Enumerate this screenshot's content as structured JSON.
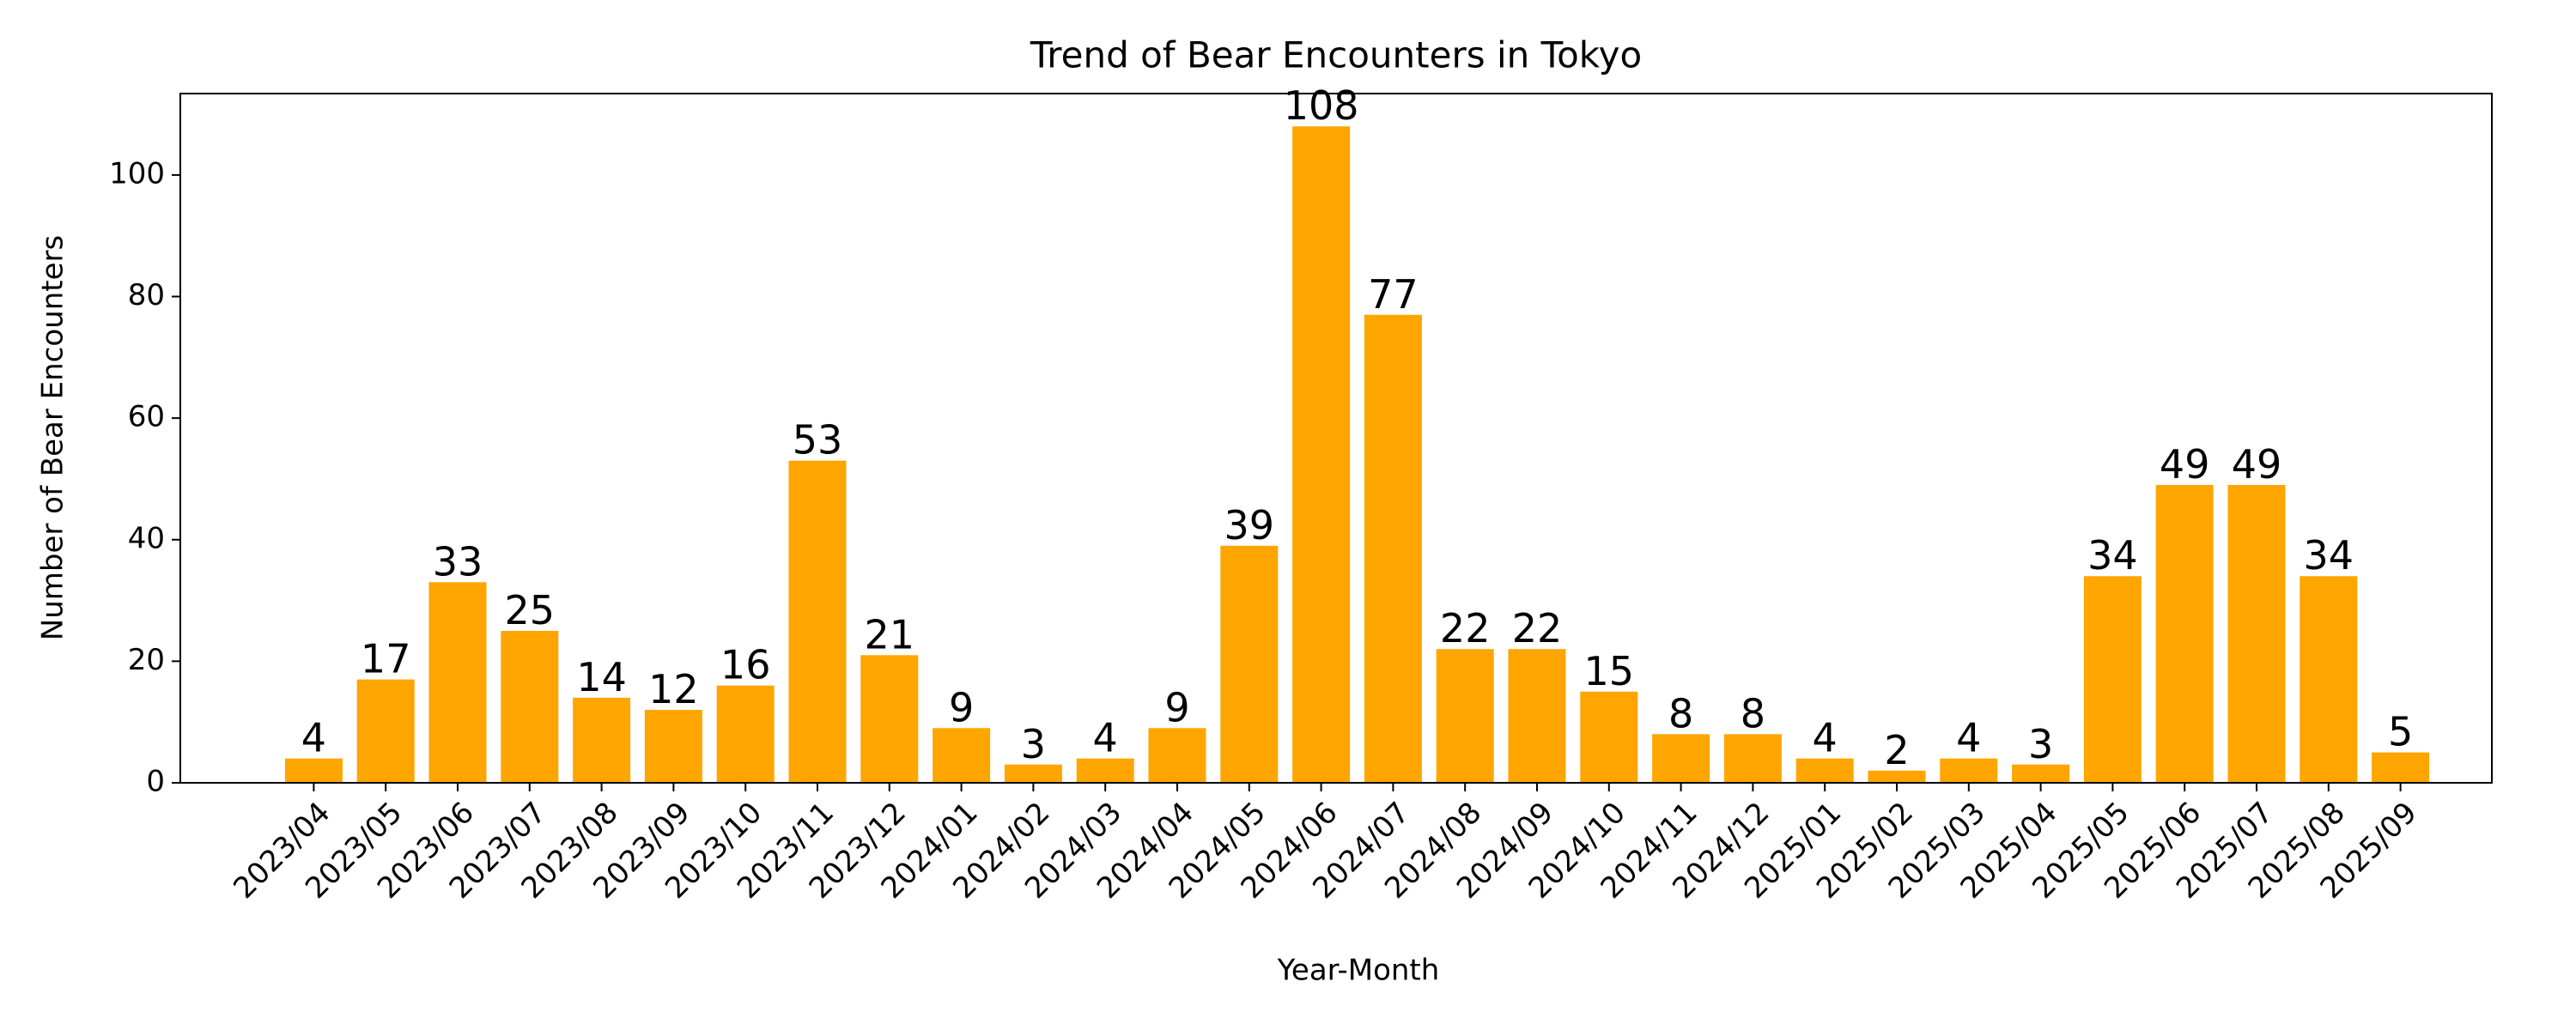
{
  "chart_data": {
    "type": "bar",
    "title": "Trend of Bear Encounters in Tokyo",
    "x_label": "Year-Month",
    "y_label": "Number of Bear Encounters",
    "categories": [
      "2023/04",
      "2023/05",
      "2023/06",
      "2023/07",
      "2023/08",
      "2023/09",
      "2023/10",
      "2023/11",
      "2023/12",
      "2024/01",
      "2024/02",
      "2024/03",
      "2024/04",
      "2024/05",
      "2024/06",
      "2024/07",
      "2024/08",
      "2024/09",
      "2024/10",
      "2024/11",
      "2024/12",
      "2025/01",
      "2025/02",
      "2025/03",
      "2025/04",
      "2025/05",
      "2025/06",
      "2025/07",
      "2025/08",
      "2025/09"
    ],
    "values": [
      4,
      17,
      33,
      25,
      14,
      12,
      16,
      53,
      21,
      9,
      3,
      4,
      9,
      39,
      108,
      77,
      22,
      22,
      15,
      8,
      8,
      4,
      2,
      4,
      3,
      34,
      49,
      49,
      34,
      5
    ],
    "color": "#ffa500",
    "ylim": [
      0,
      113.4
    ],
    "yticks": [
      0,
      20,
      40,
      60,
      80,
      100
    ]
  }
}
